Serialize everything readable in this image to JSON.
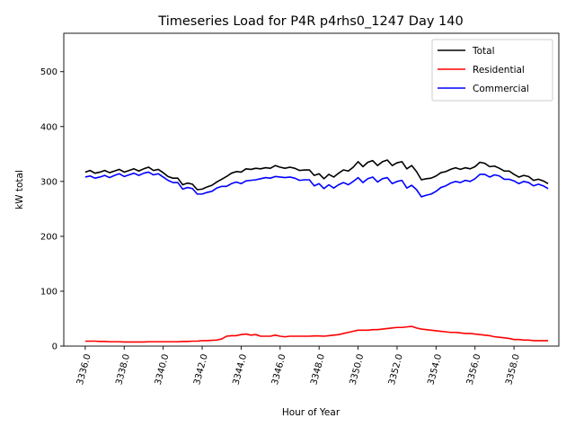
{
  "chart_data": {
    "type": "line",
    "title": "Timeseries Load for P4R p4rhs0_1247  Day 140",
    "xlabel": "Hour of Year",
    "ylabel": "kW total",
    "xlim": [
      3334.9,
      3360.3
    ],
    "ylim": [
      0,
      570
    ],
    "x_ticks": [
      3336.0,
      3338.0,
      3340.0,
      3342.0,
      3344.0,
      3346.0,
      3348.0,
      3350.0,
      3352.0,
      3354.0,
      3356.0,
      3358.0
    ],
    "x_tick_labels": [
      "3336.0",
      "3338.0",
      "3340.0",
      "3342.0",
      "3344.0",
      "3346.0",
      "3348.0",
      "3350.0",
      "3352.0",
      "3354.0",
      "3356.0",
      "3358.0"
    ],
    "y_ticks": [
      0,
      100,
      200,
      300,
      400,
      500
    ],
    "y_tick_labels": [
      "0",
      "100",
      "200",
      "300",
      "400",
      "500"
    ],
    "x_start": 3336.0,
    "x_step": 0.25,
    "legend_position": "top-right",
    "grid": false,
    "series": [
      {
        "name": "Total",
        "color": "#000000",
        "values": [
          317,
          320,
          315,
          317,
          320,
          316,
          319,
          322,
          317,
          320,
          323,
          319,
          323,
          326,
          320,
          322,
          316,
          309,
          306,
          306,
          294,
          297,
          295,
          285,
          286,
          290,
          293,
          299,
          304,
          309,
          315,
          318,
          317,
          323,
          322,
          324,
          323,
          325,
          324,
          329,
          326,
          324,
          326,
          324,
          320,
          321,
          321,
          311,
          314,
          305,
          313,
          308,
          315,
          321,
          319,
          326,
          336,
          327,
          335,
          338,
          329,
          336,
          339,
          329,
          334,
          336,
          323,
          329,
          318,
          303,
          305,
          306,
          310,
          316,
          318,
          322,
          325,
          322,
          325,
          323,
          327,
          335,
          333,
          327,
          328,
          324,
          319,
          319,
          313,
          308,
          311,
          309,
          302,
          304,
          301,
          296
        ]
      },
      {
        "name": "Residential",
        "color": "#ff0000",
        "values": [
          9,
          9,
          9,
          8.5,
          8.5,
          8,
          8,
          8,
          7.5,
          7.5,
          7.5,
          7.5,
          7.5,
          8,
          8,
          8,
          8,
          8,
          8,
          8,
          8.5,
          8.5,
          9,
          9,
          10,
          10,
          10.5,
          11,
          13,
          18,
          19,
          19,
          21,
          22,
          20,
          21,
          18,
          18,
          18,
          20,
          18,
          17,
          18,
          18,
          18,
          18,
          18,
          18.5,
          18.5,
          18,
          19,
          20,
          21,
          23,
          25,
          27,
          29,
          29,
          29,
          30,
          30,
          31,
          32,
          33,
          34,
          34,
          35,
          36,
          33,
          31,
          30,
          29,
          28,
          27,
          26,
          25,
          25,
          24,
          23,
          23,
          22,
          21,
          20,
          19,
          17,
          16,
          15,
          14,
          12,
          12,
          11,
          11,
          10,
          10,
          10,
          10
        ]
      },
      {
        "name": "Commercial",
        "color": "#0000ff",
        "values": [
          308,
          310,
          306,
          308,
          311,
          307,
          311,
          314,
          309,
          312,
          315,
          311,
          315,
          317,
          312,
          314,
          308,
          302,
          298,
          298,
          286,
          289,
          287,
          277,
          277,
          280,
          282,
          288,
          291,
          291,
          296,
          299,
          296,
          301,
          302,
          303,
          305,
          307,
          306,
          309,
          308,
          307,
          308,
          306,
          302,
          303,
          303,
          292,
          296,
          287,
          294,
          288,
          294,
          298,
          294,
          300,
          307,
          298,
          305,
          308,
          299,
          305,
          307,
          296,
          300,
          302,
          288,
          293,
          285,
          272,
          275,
          277,
          282,
          289,
          292,
          297,
          300,
          298,
          302,
          300,
          305,
          313,
          313,
          308,
          312,
          310,
          304,
          304,
          301,
          296,
          300,
          298,
          292,
          295,
          292,
          287
        ]
      }
    ]
  }
}
